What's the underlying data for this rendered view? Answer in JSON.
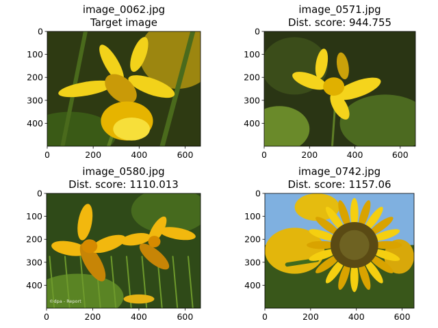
{
  "chart_data": [
    {
      "type": "image",
      "title_lines": [
        "image_0062.jpg",
        "Target image"
      ],
      "image_size": [
        667,
        500
      ],
      "xlim": [
        0,
        667
      ],
      "ylim": [
        500,
        0
      ],
      "xticks": [
        0,
        200,
        400,
        600
      ],
      "yticks": [
        0,
        100,
        200,
        300,
        400
      ],
      "content": "yellow daffodil with trumpet, dark green leaves",
      "colors": {
        "bg": "#2e3a12",
        "petal": "#f2d21a",
        "petal_dark": "#c99a08",
        "leaf": "#4a6a1c",
        "center": "#e6b400"
      }
    },
    {
      "type": "image",
      "title_lines": [
        "image_0571.jpg",
        "Dist. score: 944.755"
      ],
      "image_size": [
        667,
        500
      ],
      "xlim": [
        0,
        667
      ],
      "ylim": [
        500,
        0
      ],
      "xticks": [
        0,
        200,
        400,
        600
      ],
      "yticks": [
        0,
        100,
        200,
        300,
        400
      ],
      "content": "single yellow star-shaped flower over dark foliage",
      "colors": {
        "bg": "#2a3514",
        "petal": "#f5d41c",
        "petal_dark": "#caa10a",
        "leaf": "#4f6e22",
        "center": "#e0b000"
      }
    },
    {
      "type": "image",
      "title_lines": [
        "image_0580.jpg",
        "Dist. score: 1110.013"
      ],
      "image_size": [
        667,
        500
      ],
      "xlim": [
        0,
        667
      ],
      "ylim": [
        500,
        0
      ],
      "xticks": [
        0,
        200,
        400,
        600
      ],
      "yticks": [
        0,
        100,
        200,
        300,
        400
      ],
      "watermark": "©dpa - Report",
      "content": "two yellow lily flowers in green grass",
      "colors": {
        "bg": "#2f4a18",
        "petal": "#f2b80e",
        "petal_dark": "#c78506",
        "leaf": "#5a8424",
        "center": "#d68a00"
      }
    },
    {
      "type": "image",
      "title_lines": [
        "image_0742.jpg",
        "Dist. score: 1157.06"
      ],
      "image_size": [
        652,
        500
      ],
      "xlim": [
        0,
        652
      ],
      "ylim": [
        500,
        0
      ],
      "xticks": [
        0,
        200,
        400,
        600
      ],
      "yticks": [
        0,
        100,
        200,
        300,
        400
      ],
      "content": "sunflower with brown center, blue sky, field of sunflowers",
      "colors": {
        "bg": "#7fb0e0",
        "petal": "#f5cf10",
        "petal_dark": "#d9a300",
        "leaf": "#3f6a1e",
        "center": "#5a4a14"
      }
    }
  ]
}
